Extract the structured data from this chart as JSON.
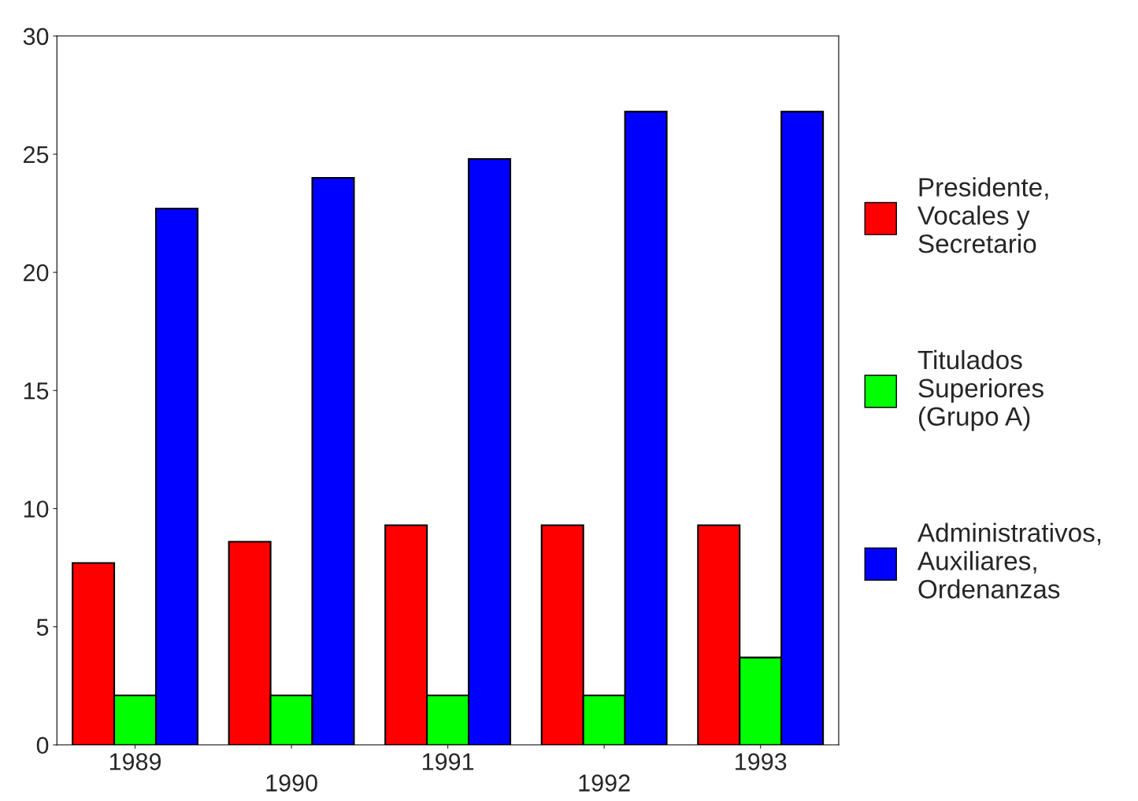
{
  "chart_data": {
    "type": "bar",
    "categories": [
      "1989",
      "1990",
      "1991",
      "1992",
      "1993"
    ],
    "series": [
      {
        "name": "Presidente,\nVocales y\nSecretario",
        "color": "#ff0000",
        "values": [
          7.7,
          8.6,
          9.3,
          9.3,
          9.3
        ]
      },
      {
        "name": "Titulados\nSuperiores\n(Grupo A)",
        "color": "#00ff00",
        "values": [
          2.1,
          2.1,
          2.1,
          2.1,
          3.7
        ]
      },
      {
        "name": "Administrativos,\nAuxiliares,\nOrdenanzas",
        "color": "#0000ff",
        "values": [
          22.7,
          24,
          24.8,
          26.8,
          26.8
        ]
      }
    ],
    "ylim": [
      0,
      30
    ],
    "yticks": [
      0,
      5,
      10,
      15,
      20,
      25,
      30
    ],
    "grid": false,
    "legend": "right"
  }
}
